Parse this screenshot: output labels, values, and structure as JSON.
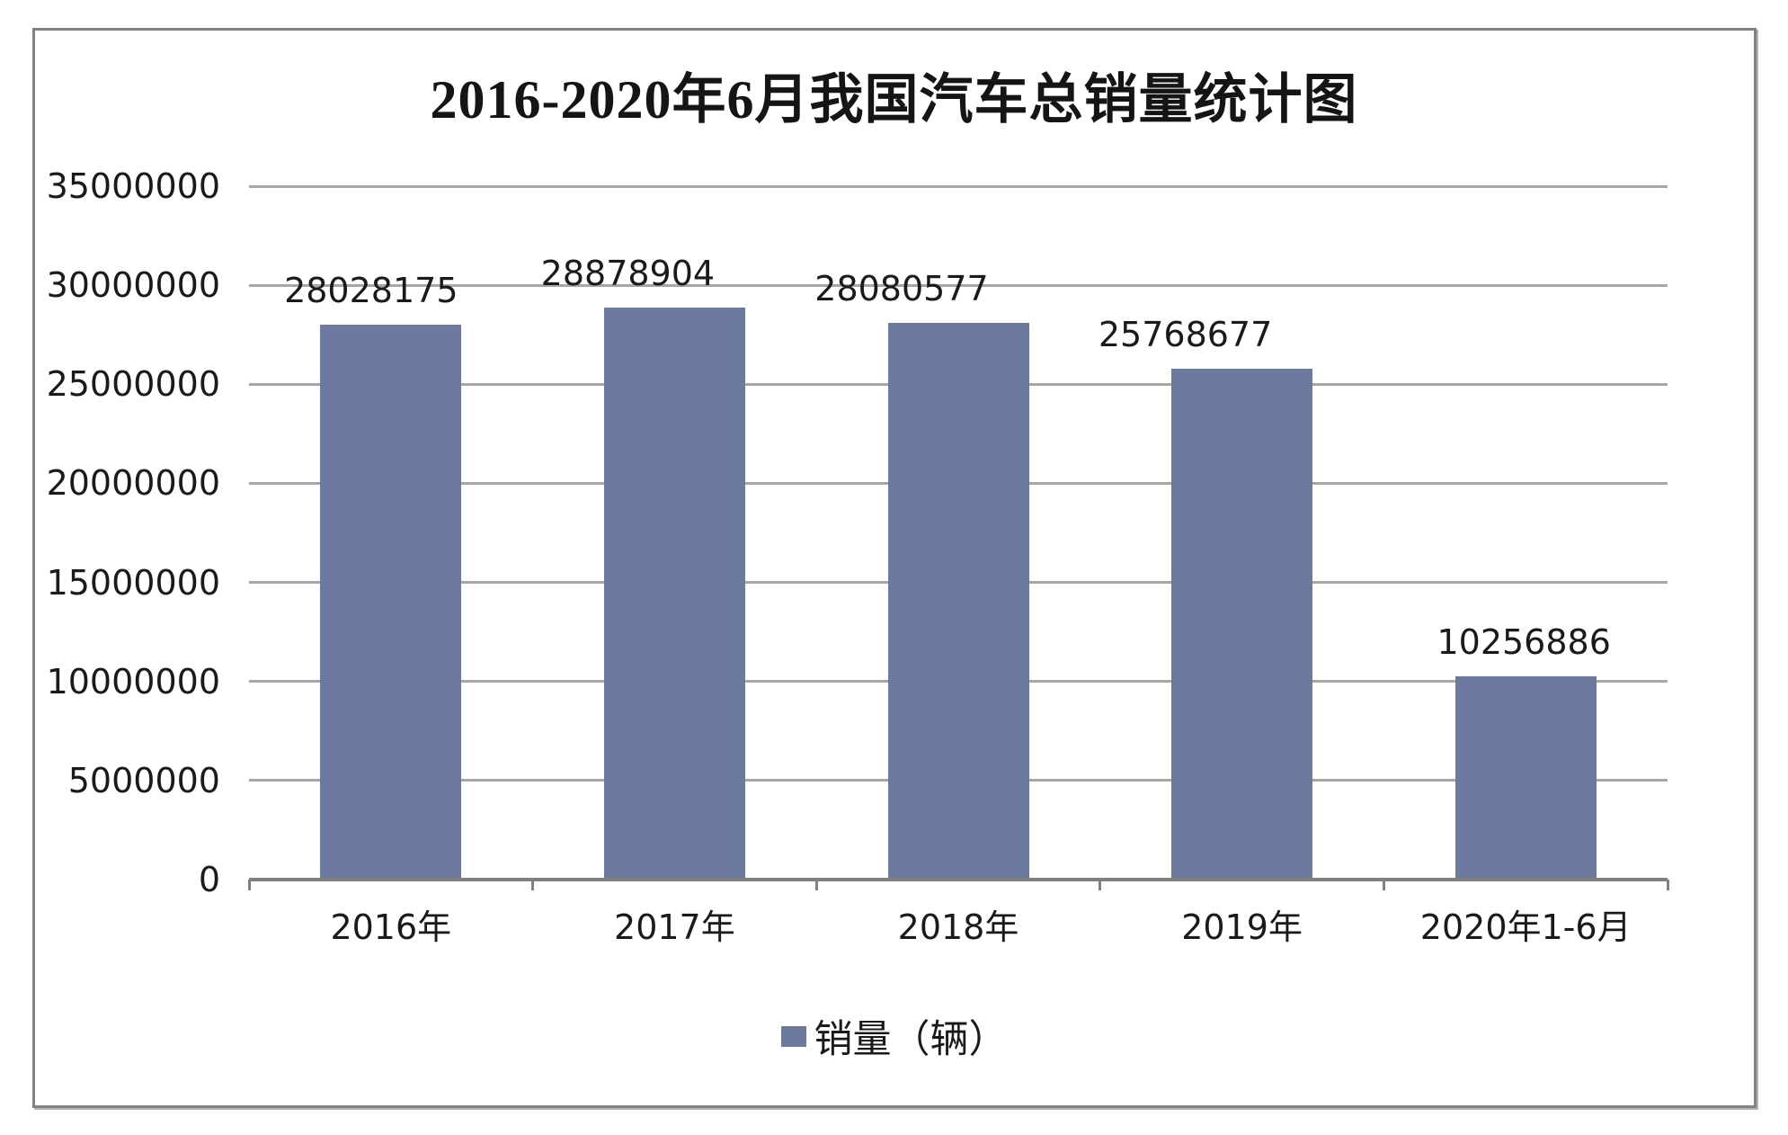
{
  "page": {
    "background": "#ffffff",
    "border_color": "#818181"
  },
  "chart_data": {
    "type": "bar",
    "title": "2016-2020年6月我国汽车总销量统计图",
    "categories": [
      "2016年",
      "2017年",
      "2018年",
      "2019年",
      "2020年1-6月"
    ],
    "series": [
      {
        "name": "销量（辆）",
        "values": [
          28028175,
          28878904,
          28080577,
          25768677,
          10256886
        ]
      }
    ],
    "value_labels": [
      "28028175",
      "28878904",
      "28080577",
      "25768677",
      "10256886"
    ],
    "xlabel": "",
    "ylabel": "",
    "ylim": [
      0,
      35000000
    ],
    "ytick_step": 5000000,
    "yticks": [
      "35000000",
      "30000000",
      "25000000",
      "20000000",
      "15000000",
      "10000000",
      "5000000",
      "0"
    ],
    "grid": true,
    "legend_position": "bottom",
    "legend": [
      "销量（辆）"
    ],
    "colors": {
      "bar": "#6b7a9e",
      "gridline": "#a6a6a6",
      "axis": "#808080",
      "text": "#1a1a1a"
    }
  }
}
